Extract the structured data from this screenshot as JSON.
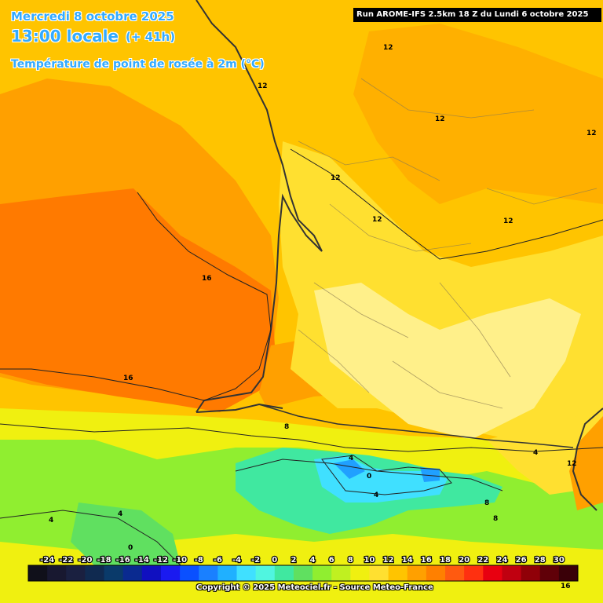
{
  "header": {
    "date": "Mercredi 8 octobre 2025",
    "time": "13:00 locale",
    "lead": "(+ 41h)",
    "parameter": "Température de point de rosée à 2m (°C)",
    "run": "Run AROME-IFS 2.5km 18 Z du Lundi 6 octobre 2025"
  },
  "footer": {
    "copyright": "Copyright © 2025 Meteociel.fr - Source Meteo-France"
  },
  "contour_labels": [
    "12",
    "12",
    "12",
    "12",
    "12",
    "12",
    "12",
    "16",
    "16",
    "8",
    "4",
    "0",
    "4",
    "4",
    "4",
    "0",
    "8",
    "4",
    "12",
    "8",
    "16"
  ],
  "colorbar": {
    "ticks": [
      "-24",
      "-22",
      "-20",
      "-18",
      "-16",
      "-14",
      "-12",
      "-10",
      "-8",
      "-6",
      "-4",
      "-2",
      "0",
      "2",
      "4",
      "6",
      "8",
      "10",
      "12",
      "14",
      "16",
      "18",
      "20",
      "22",
      "24",
      "26",
      "28",
      "30"
    ],
    "colors": [
      "#10101a",
      "#181830",
      "#1a2040",
      "#102a50",
      "#0a3a6a",
      "#0a2a90",
      "#1010c0",
      "#1a1af0",
      "#0a50ff",
      "#1a80ff",
      "#20b0ff",
      "#40e0ff",
      "#50f5e0",
      "#40e8a0",
      "#60e060",
      "#90ee30",
      "#c0f020",
      "#f0f010",
      "#ffe030",
      "#ffc400",
      "#ffa000",
      "#ff8000",
      "#ff5a10",
      "#ff3010",
      "#e80010",
      "#c00010",
      "#900008",
      "#600008",
      "#3a0008"
    ]
  }
}
